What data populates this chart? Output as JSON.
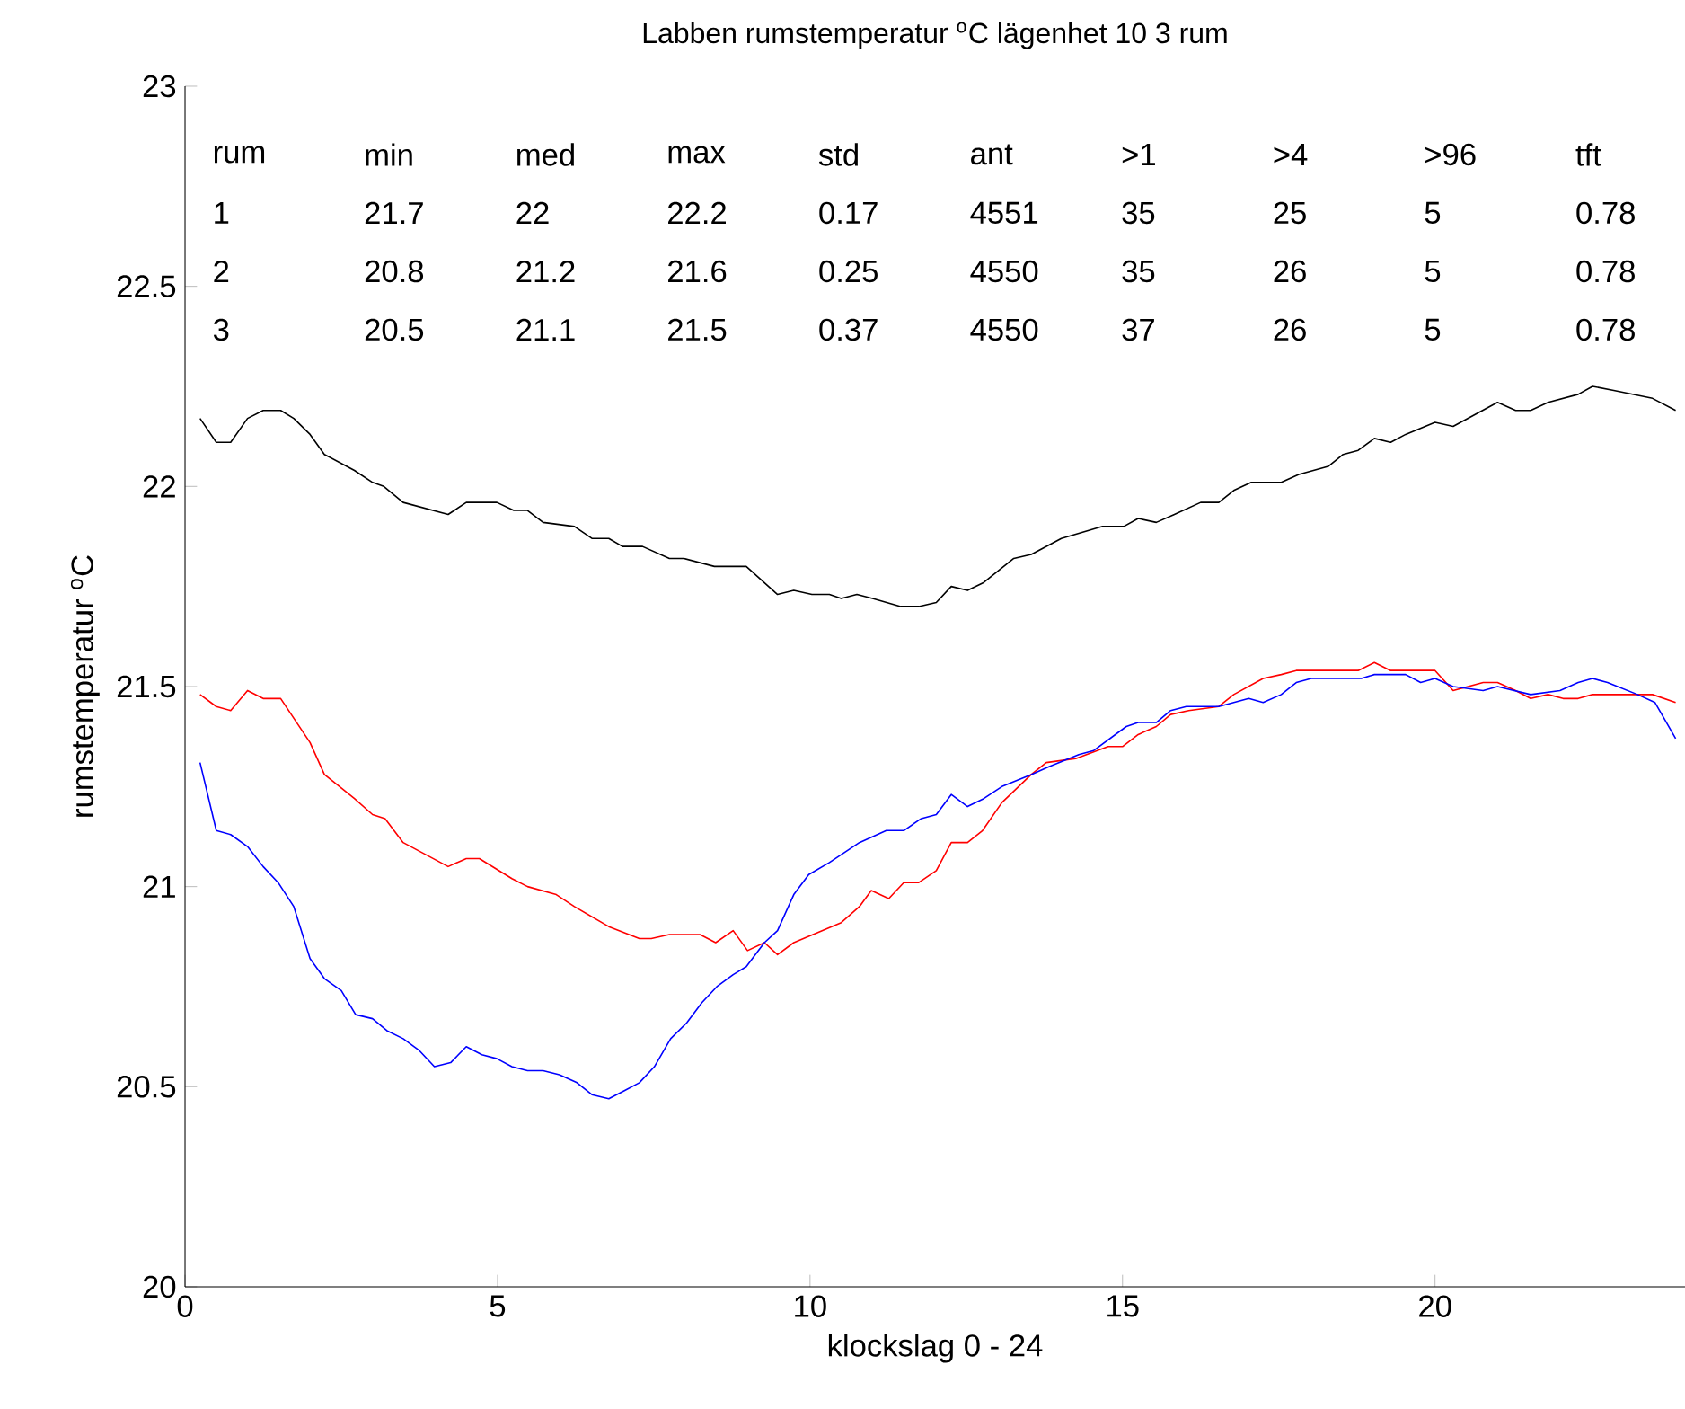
{
  "chart_data": {
    "type": "line",
    "title": "Labben  rumstemperatur  $^{o}$C  lägenhet 10  3 rum",
    "xlabel": "klockslag   0 - 24",
    "ylabel": "rumstemperatur  $^{o}$C",
    "xlim": [
      0,
      24
    ],
    "ylim": [
      20,
      23
    ],
    "xticks": [
      0,
      5,
      10,
      15,
      20
    ],
    "yticks": [
      20,
      20.5,
      21,
      21.5,
      22,
      22.5,
      23
    ],
    "line_style": "solid",
    "annotations": [
      "rum",
      "min",
      "med",
      "max",
      "std",
      "ant",
      ">1",
      ">4",
      ">96",
      "tft",
      "1",
      "21.7",
      "22",
      "22.2",
      "0.17",
      "4551",
      "35",
      "25",
      "5",
      "0.78",
      "2",
      "20.8",
      "21.2",
      "21.6",
      "0.25",
      "4550",
      "35",
      "26",
      "5",
      "0.78",
      "3",
      "20.5",
      "21.1",
      "21.5",
      "0.37",
      "4550",
      "37",
      "26",
      "5",
      "0.78"
    ],
    "series": [
      {
        "color": "#000000",
        "x": [
          0.24,
          0.5,
          0.73,
          1.0,
          1.25,
          1.53,
          1.74,
          2.0,
          2.23,
          2.71,
          3.0,
          3.18,
          3.49,
          4.21,
          4.5,
          4.99,
          5.26,
          5.48,
          5.73,
          6.23,
          6.51,
          6.78,
          7.0,
          7.32,
          7.75,
          7.98,
          8.47,
          8.98,
          9.48,
          9.74,
          10.03,
          10.31,
          10.5,
          10.75,
          11.0,
          11.45,
          11.74,
          12.02,
          12.26,
          12.52,
          12.78,
          13.26,
          13.54,
          14.02,
          14.68,
          15.02,
          15.25,
          15.54,
          15.83,
          16.25,
          16.54,
          16.78,
          17.06,
          17.54,
          17.82,
          18.29,
          18.53,
          18.77,
          19.03,
          19.29,
          19.53,
          20.0,
          20.29,
          21.0,
          21.29,
          21.53,
          21.81,
          22.29,
          22.52,
          22.86,
          23.48,
          23.85
        ],
        "values": [
          22.17,
          22.11,
          22.11,
          22.17,
          22.19,
          22.19,
          22.17,
          22.13,
          22.08,
          22.04,
          22.01,
          22.0,
          21.96,
          21.93,
          21.96,
          21.96,
          21.94,
          21.94,
          21.91,
          21.9,
          21.87,
          21.87,
          21.85,
          21.85,
          21.82,
          21.82,
          21.8,
          21.8,
          21.73,
          21.74,
          21.73,
          21.73,
          21.72,
          21.73,
          21.72,
          21.7,
          21.7,
          21.71,
          21.75,
          21.74,
          21.76,
          21.82,
          21.83,
          21.87,
          21.9,
          21.9,
          21.92,
          21.91,
          21.93,
          21.96,
          21.96,
          21.99,
          22.01,
          22.01,
          22.03,
          22.05,
          22.08,
          22.09,
          22.12,
          22.11,
          22.13,
          22.16,
          22.15,
          22.21,
          22.19,
          22.19,
          22.21,
          22.23,
          22.25,
          22.24,
          22.22,
          22.19
        ]
      },
      {
        "color": "#ff0000",
        "x": [
          0.24,
          0.5,
          0.73,
          1.0,
          1.25,
          1.53,
          2.0,
          2.23,
          2.71,
          3.0,
          3.2,
          3.49,
          4.21,
          4.5,
          4.71,
          5.23,
          5.48,
          5.94,
          6.23,
          6.78,
          7.27,
          7.46,
          7.75,
          8.24,
          8.49,
          8.77,
          9.0,
          9.27,
          9.48,
          9.74,
          10.5,
          10.79,
          10.98,
          11.26,
          11.5,
          11.74,
          12.02,
          12.26,
          12.52,
          12.76,
          13.07,
          13.54,
          13.78,
          14.25,
          14.77,
          15.0,
          15.25,
          15.54,
          15.77,
          16.06,
          16.54,
          16.78,
          17.25,
          17.54,
          17.78,
          18.06,
          18.29,
          18.53,
          18.77,
          19.03,
          19.29,
          19.53,
          19.77,
          20.0,
          20.29,
          20.77,
          21.0,
          21.29,
          21.53,
          21.81,
          22.05,
          22.29,
          22.52,
          22.91,
          23.48,
          23.85
        ],
        "values": [
          21.48,
          21.45,
          21.44,
          21.49,
          21.47,
          21.47,
          21.36,
          21.28,
          21.22,
          21.18,
          21.17,
          21.11,
          21.05,
          21.07,
          21.07,
          21.02,
          21.0,
          20.98,
          20.95,
          20.9,
          20.87,
          20.87,
          20.88,
          20.88,
          20.86,
          20.89,
          20.84,
          20.86,
          20.83,
          20.86,
          20.91,
          20.95,
          20.99,
          20.97,
          21.01,
          21.01,
          21.04,
          21.11,
          21.11,
          21.14,
          21.21,
          21.28,
          21.31,
          21.32,
          21.35,
          21.35,
          21.38,
          21.4,
          21.43,
          21.44,
          21.45,
          21.48,
          21.52,
          21.53,
          21.54,
          21.54,
          21.54,
          21.54,
          21.54,
          21.56,
          21.54,
          21.54,
          21.54,
          21.54,
          21.49,
          21.51,
          21.51,
          21.49,
          21.47,
          21.48,
          21.47,
          21.47,
          21.48,
          21.48,
          21.48,
          21.46
        ]
      },
      {
        "color": "#0000ff",
        "x": [
          0.24,
          0.5,
          0.73,
          1.0,
          1.25,
          1.49,
          1.74,
          2.0,
          2.23,
          2.5,
          2.73,
          3.0,
          3.23,
          3.49,
          3.75,
          3.99,
          4.25,
          4.5,
          4.75,
          4.99,
          5.23,
          5.48,
          5.73,
          5.99,
          6.27,
          6.51,
          6.78,
          7.03,
          7.27,
          7.51,
          7.77,
          8.03,
          8.27,
          8.51,
          8.77,
          8.98,
          9.27,
          9.48,
          9.74,
          9.98,
          10.31,
          10.79,
          11.22,
          11.5,
          11.78,
          12.02,
          12.26,
          12.52,
          12.78,
          13.07,
          13.54,
          13.83,
          14.3,
          14.54,
          15.06,
          15.25,
          15.54,
          15.77,
          16.02,
          16.54,
          16.78,
          17.02,
          17.25,
          17.54,
          17.78,
          18.02,
          18.29,
          18.53,
          18.82,
          19.03,
          19.29,
          19.53,
          19.77,
          20.0,
          20.29,
          20.77,
          21.0,
          21.53,
          22.0,
          22.29,
          22.52,
          22.76,
          23.24,
          23.52,
          23.85
        ],
        "values": [
          21.31,
          21.14,
          21.13,
          21.1,
          21.05,
          21.01,
          20.95,
          20.82,
          20.77,
          20.74,
          20.68,
          20.67,
          20.64,
          20.62,
          20.59,
          20.55,
          20.56,
          20.6,
          20.58,
          20.57,
          20.55,
          20.54,
          20.54,
          20.53,
          20.51,
          20.48,
          20.47,
          20.49,
          20.51,
          20.55,
          20.62,
          20.66,
          20.71,
          20.75,
          20.78,
          20.8,
          20.86,
          20.89,
          20.98,
          21.03,
          21.06,
          21.11,
          21.14,
          21.14,
          21.17,
          21.18,
          21.23,
          21.2,
          21.22,
          21.25,
          21.28,
          21.3,
          21.33,
          21.34,
          21.4,
          21.41,
          21.41,
          21.44,
          21.45,
          21.45,
          21.46,
          21.47,
          21.46,
          21.48,
          21.51,
          21.52,
          21.52,
          21.52,
          21.52,
          21.53,
          21.53,
          21.53,
          21.51,
          21.52,
          21.5,
          21.49,
          21.5,
          21.48,
          21.49,
          21.51,
          21.52,
          21.51,
          21.48,
          21.46,
          21.37
        ]
      }
    ]
  }
}
